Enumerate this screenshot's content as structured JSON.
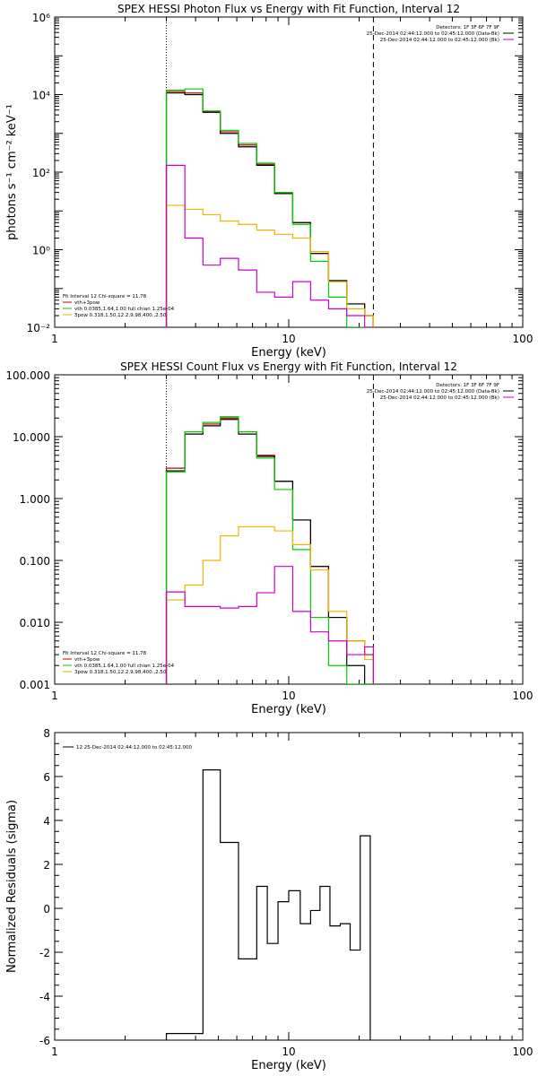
{
  "chart_data": [
    {
      "type": "line",
      "title": "SPEX HESSI Photon Flux vs Energy with Fit Function, Interval 12",
      "xlabel": "Energy (keV)",
      "ylabel": "photons s⁻¹ cm⁻² keV⁻¹",
      "xscale": "log",
      "yscale": "log",
      "xlim": [
        1,
        100
      ],
      "ylim": [
        0.01,
        1000000
      ],
      "xticks": [
        {
          "v": 1,
          "label": "1"
        },
        {
          "v": 10,
          "label": "10"
        },
        {
          "v": 100,
          "label": "100"
        }
      ],
      "yticks": [
        {
          "v": 0.01,
          "label": "10⁻²"
        },
        {
          "v": 1,
          "label": "10⁰"
        },
        {
          "v": 100,
          "label": "10²"
        },
        {
          "v": 10000,
          "label": "10⁴"
        },
        {
          "v": 1000000,
          "label": "10⁶"
        }
      ],
      "vlines": [
        {
          "x": 3,
          "style": "dotted"
        },
        {
          "x": 23,
          "style": "dashed"
        }
      ],
      "legend_right": [
        {
          "text": "Detectors: 1F 3F 6F 7F 9F",
          "color": "#000000"
        },
        {
          "text": "25-Dec-2014 02:44:12.000 to 02:45:12.000 (Data-Bk)",
          "color": "#000000"
        },
        {
          "text": "25-Dec-2014 02:44:12.000 to 02:45:12.000 (Bk)",
          "color": "#cc00cc"
        }
      ],
      "legend_left": [
        {
          "text": "Fit Interval 12   Chi-square = 11.78",
          "color": "#000000"
        },
        {
          "text": "vth+3pow",
          "color": "#cc0000"
        },
        {
          "text": "vth 0.0385,1.64,1.00  full chian 1.25e-04",
          "color": "#00cc00"
        },
        {
          "text": "3pow 0.318,1.50,12.2,9.98,400.,2.50",
          "color": "#e6b800"
        }
      ],
      "edges": [
        3,
        3.6,
        4.3,
        5.1,
        6.1,
        7.3,
        8.7,
        10.4,
        12.4,
        14.8,
        17.7,
        21.1,
        23
      ],
      "series": [
        {
          "color": "#cc0000",
          "values": [
            12000,
            11000,
            3600,
            1100,
            500,
            160,
            30,
            5,
            0.8,
            0.16,
            0.04,
            0.02
          ]
        },
        {
          "color": "#000000",
          "values": [
            11000,
            10000,
            3500,
            1000,
            450,
            150,
            28,
            5,
            0.8,
            0.16,
            0.04,
            0.02
          ]
        },
        {
          "color": "#00cc00",
          "values": [
            13000,
            14000,
            3800,
            1200,
            550,
            170,
            30,
            4.5,
            0.5,
            0.06,
            0.01,
            0.004
          ]
        },
        {
          "color": "#e6b800",
          "values": [
            14,
            11,
            8,
            5.5,
            4.5,
            3.2,
            2.5,
            2.0,
            0.9,
            0.15,
            0.03,
            0.02
          ]
        },
        {
          "color": "#cc00cc",
          "values": [
            150,
            2.0,
            0.4,
            0.6,
            0.3,
            0.08,
            0.06,
            0.15,
            0.05,
            0.03,
            0.02,
            0.01
          ]
        }
      ]
    },
    {
      "type": "line",
      "title": "SPEX HESSI Count Flux vs Energy with Fit Function, Interval 12",
      "xlabel": "Energy (keV)",
      "ylabel": "",
      "xscale": "log",
      "yscale": "log",
      "xlim": [
        1,
        100
      ],
      "ylim": [
        0.001,
        100
      ],
      "xticks": [
        {
          "v": 1,
          "label": "1"
        },
        {
          "v": 10,
          "label": "10"
        },
        {
          "v": 100,
          "label": "100"
        }
      ],
      "yticks": [
        {
          "v": 0.001,
          "label": "0.001"
        },
        {
          "v": 0.01,
          "label": "0.010"
        },
        {
          "v": 0.1,
          "label": "0.100"
        },
        {
          "v": 1,
          "label": "1.000"
        },
        {
          "v": 10,
          "label": "10.000"
        },
        {
          "v": 100,
          "label": "100.000"
        }
      ],
      "vlines": [
        {
          "x": 3,
          "style": "dotted"
        },
        {
          "x": 23,
          "style": "dashed"
        }
      ],
      "legend_right": [
        {
          "text": "Detectors: 1F 3F 6F 7F 9F",
          "color": "#000000"
        },
        {
          "text": "25-Dec-2014 02:44:12.000 to 02:45:12.000 (Data-Bk)",
          "color": "#000000"
        },
        {
          "text": "25-Dec-2014 02:44:12.000 to 02:45:12.000 (Bk)",
          "color": "#cc00cc"
        }
      ],
      "legend_left": [
        {
          "text": "Fit Interval 12   Chi-square = 11.78",
          "color": "#000000"
        },
        {
          "text": "vth+3pow",
          "color": "#cc0000"
        },
        {
          "text": "vth 0.0385,1.64,1.00  full chian 1.25e-04",
          "color": "#00cc00"
        },
        {
          "text": "3pow 0.318,1.50,12.2,9.98,400.,2.50",
          "color": "#e6b800"
        }
      ],
      "edges": [
        3,
        3.6,
        4.3,
        5.1,
        6.1,
        7.3,
        8.7,
        10.4,
        12.4,
        14.8,
        17.7,
        21.1,
        23
      ],
      "series": [
        {
          "color": "#cc0000",
          "values": [
            3.1,
            12,
            16,
            20,
            12,
            5,
            1.9,
            0.45,
            0.08,
            0.012,
            0.005,
            0.003
          ]
        },
        {
          "color": "#000000",
          "values": [
            2.8,
            11,
            15,
            19,
            11,
            4.8,
            1.9,
            0.45,
            0.08,
            0.012,
            0.002,
            0.001
          ]
        },
        {
          "color": "#00cc00",
          "values": [
            2.7,
            12,
            17,
            21,
            12,
            4.5,
            1.4,
            0.15,
            0.012,
            0.002,
            0.0008,
            0.0008
          ]
        },
        {
          "color": "#e6b800",
          "values": [
            0.023,
            0.04,
            0.1,
            0.25,
            0.35,
            0.35,
            0.3,
            0.18,
            0.07,
            0.015,
            0.005,
            0.0025
          ]
        },
        {
          "color": "#cc00cc",
          "values": [
            0.031,
            0.018,
            0.018,
            0.017,
            0.018,
            0.03,
            0.08,
            0.015,
            0.007,
            0.005,
            0.003,
            0.004
          ]
        }
      ]
    },
    {
      "type": "line",
      "title": "",
      "xlabel": "Energy (keV)",
      "ylabel": "Normalized Residuals (sigma)",
      "xscale": "log",
      "yscale": "linear",
      "xlim": [
        1,
        100
      ],
      "ylim": [
        -6,
        8
      ],
      "xticks": [
        {
          "v": 1,
          "label": "1"
        },
        {
          "v": 10,
          "label": "10"
        },
        {
          "v": 100,
          "label": "100"
        }
      ],
      "yticks": [
        {
          "v": -6,
          "label": "-6"
        },
        {
          "v": -4,
          "label": "-4"
        },
        {
          "v": -2,
          "label": "-2"
        },
        {
          "v": 0,
          "label": "0"
        },
        {
          "v": 2,
          "label": "2"
        },
        {
          "v": 4,
          "label": "4"
        },
        {
          "v": 6,
          "label": "6"
        },
        {
          "v": 8,
          "label": "8"
        }
      ],
      "vlines": [],
      "legend_right": [],
      "legend_left": [
        {
          "text": "12  25-Dec-2014 02:44:12.000 to 02:45:12.000",
          "color": "#000000",
          "line": true
        }
      ],
      "edges": [
        3,
        4.3,
        5.1,
        6.1,
        7.3,
        8.1,
        9.0,
        10.0,
        11.2,
        12.4,
        13.6,
        15.0,
        16.6,
        18.3,
        20.2,
        22.3
      ],
      "series": [
        {
          "color": "#000000",
          "values": [
            -5.7,
            6.3,
            3.0,
            -2.3,
            1.0,
            -1.6,
            0.3,
            0.8,
            -0.7,
            -0.1,
            1.0,
            -0.8,
            -0.7,
            -1.9,
            3.3
          ]
        }
      ]
    }
  ]
}
